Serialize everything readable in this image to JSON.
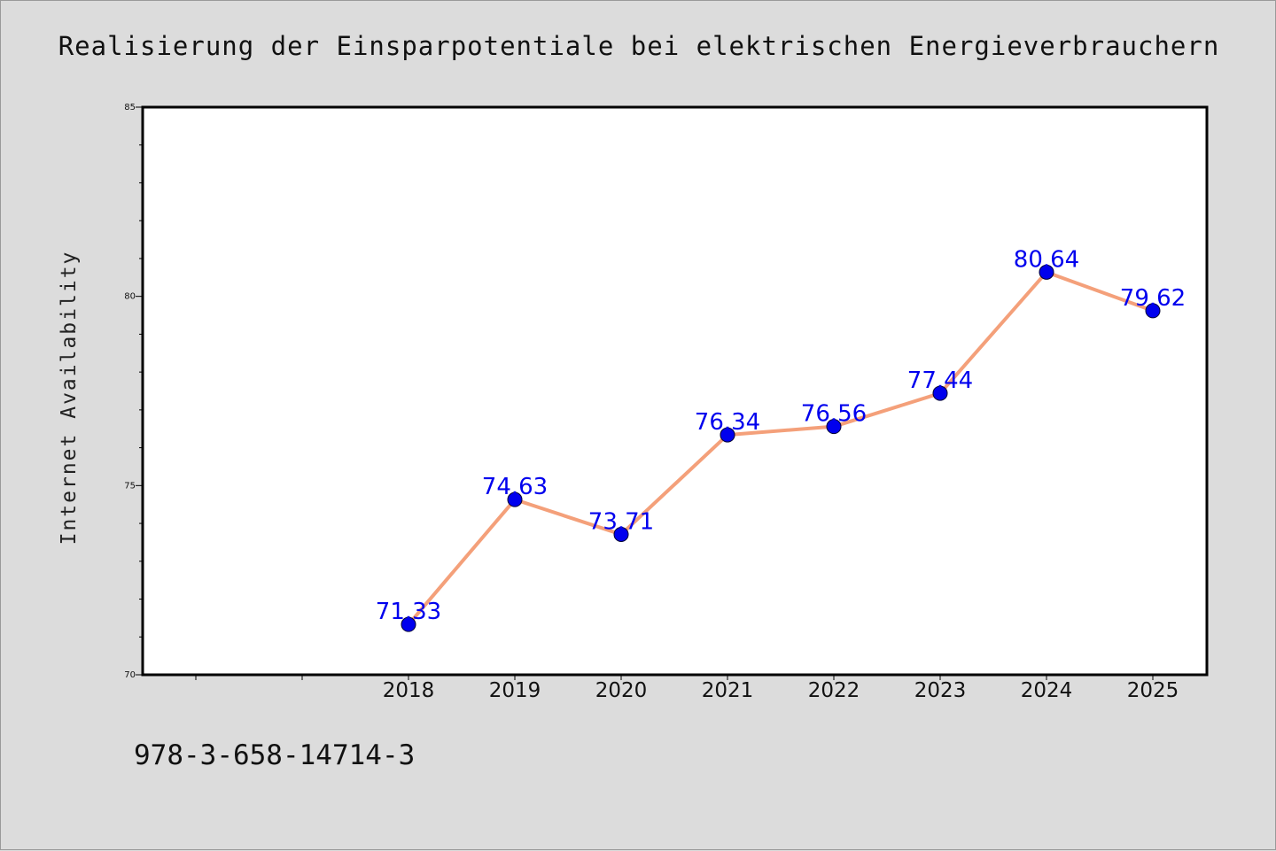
{
  "chart_data": {
    "type": "line",
    "title": "Realisierung der Einsparpotentiale bei elektrischen Energieverbrauchern",
    "xlabel": "",
    "ylabel": "Internet Availability",
    "categories": [
      "2018",
      "2019",
      "2020",
      "2021",
      "2022",
      "2023",
      "2024",
      "2025"
    ],
    "series": [
      {
        "values": [
          71.33,
          74.63,
          73.71,
          76.34,
          76.56,
          77.44,
          80.64,
          79.62
        ],
        "labels": [
          "71.33",
          "74.63",
          "73.71",
          "76.34",
          "76.56",
          "77.44",
          "80.64",
          "79.62"
        ]
      }
    ],
    "ylim": [
      70,
      85
    ],
    "yticks": [
      "70",
      "75",
      "80",
      "85"
    ],
    "grid": false,
    "legend": "none",
    "colors": {
      "line": "#f4a07a",
      "marker": "#0000ee",
      "data_label": "#0000ee",
      "background": "#dcdcdc",
      "plot_background": "#ffffff"
    }
  },
  "footer": {
    "isbn": "978-3-658-14714-3"
  }
}
